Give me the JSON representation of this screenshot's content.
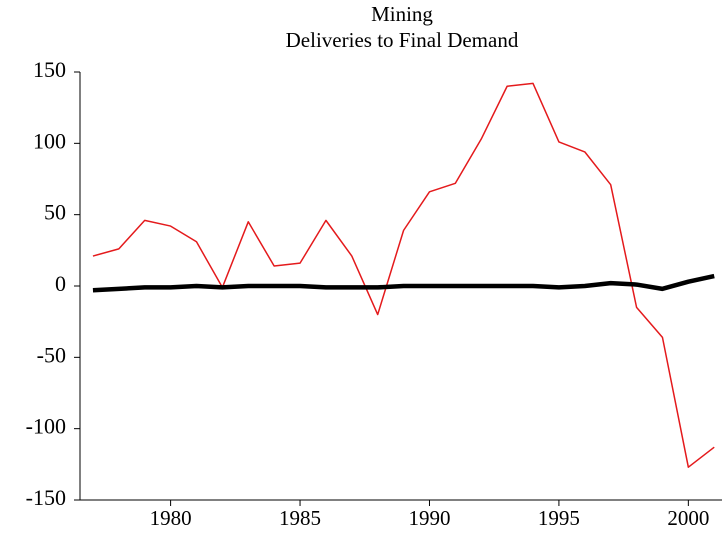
{
  "chart_data": {
    "type": "line",
    "title": "Mining",
    "subtitle": "Deliveries to Final Demand",
    "x": [
      1977,
      1978,
      1979,
      1980,
      1981,
      1982,
      1983,
      1984,
      1985,
      1986,
      1987,
      1988,
      1989,
      1990,
      1991,
      1992,
      1993,
      1994,
      1995,
      1996,
      1997,
      1998,
      1999,
      2000,
      2001
    ],
    "series": [
      {
        "color": "#e41a1c",
        "width": 1.5,
        "values": [
          21,
          26,
          46,
          42,
          31,
          -1,
          45,
          14,
          16,
          46,
          21,
          -20,
          39,
          66,
          72,
          103,
          140,
          142,
          101,
          94,
          71,
          -15,
          -36,
          -127,
          -113
        ]
      },
      {
        "color": "#000000",
        "width": 4.5,
        "values": [
          -3,
          -2,
          -1,
          -1,
          0,
          -1,
          0,
          0,
          0,
          -1,
          -1,
          -1,
          0,
          0,
          0,
          0,
          0,
          0,
          -1,
          0,
          2,
          1,
          -2,
          3,
          7
        ]
      }
    ],
    "xlim": [
      1976.5,
      2001.3
    ],
    "xticks": [
      1980,
      1985,
      1990,
      1995,
      2000
    ],
    "ylim": [
      -150,
      150
    ],
    "yticks": [
      -150,
      -100,
      -50,
      0,
      50,
      100,
      150
    ]
  }
}
